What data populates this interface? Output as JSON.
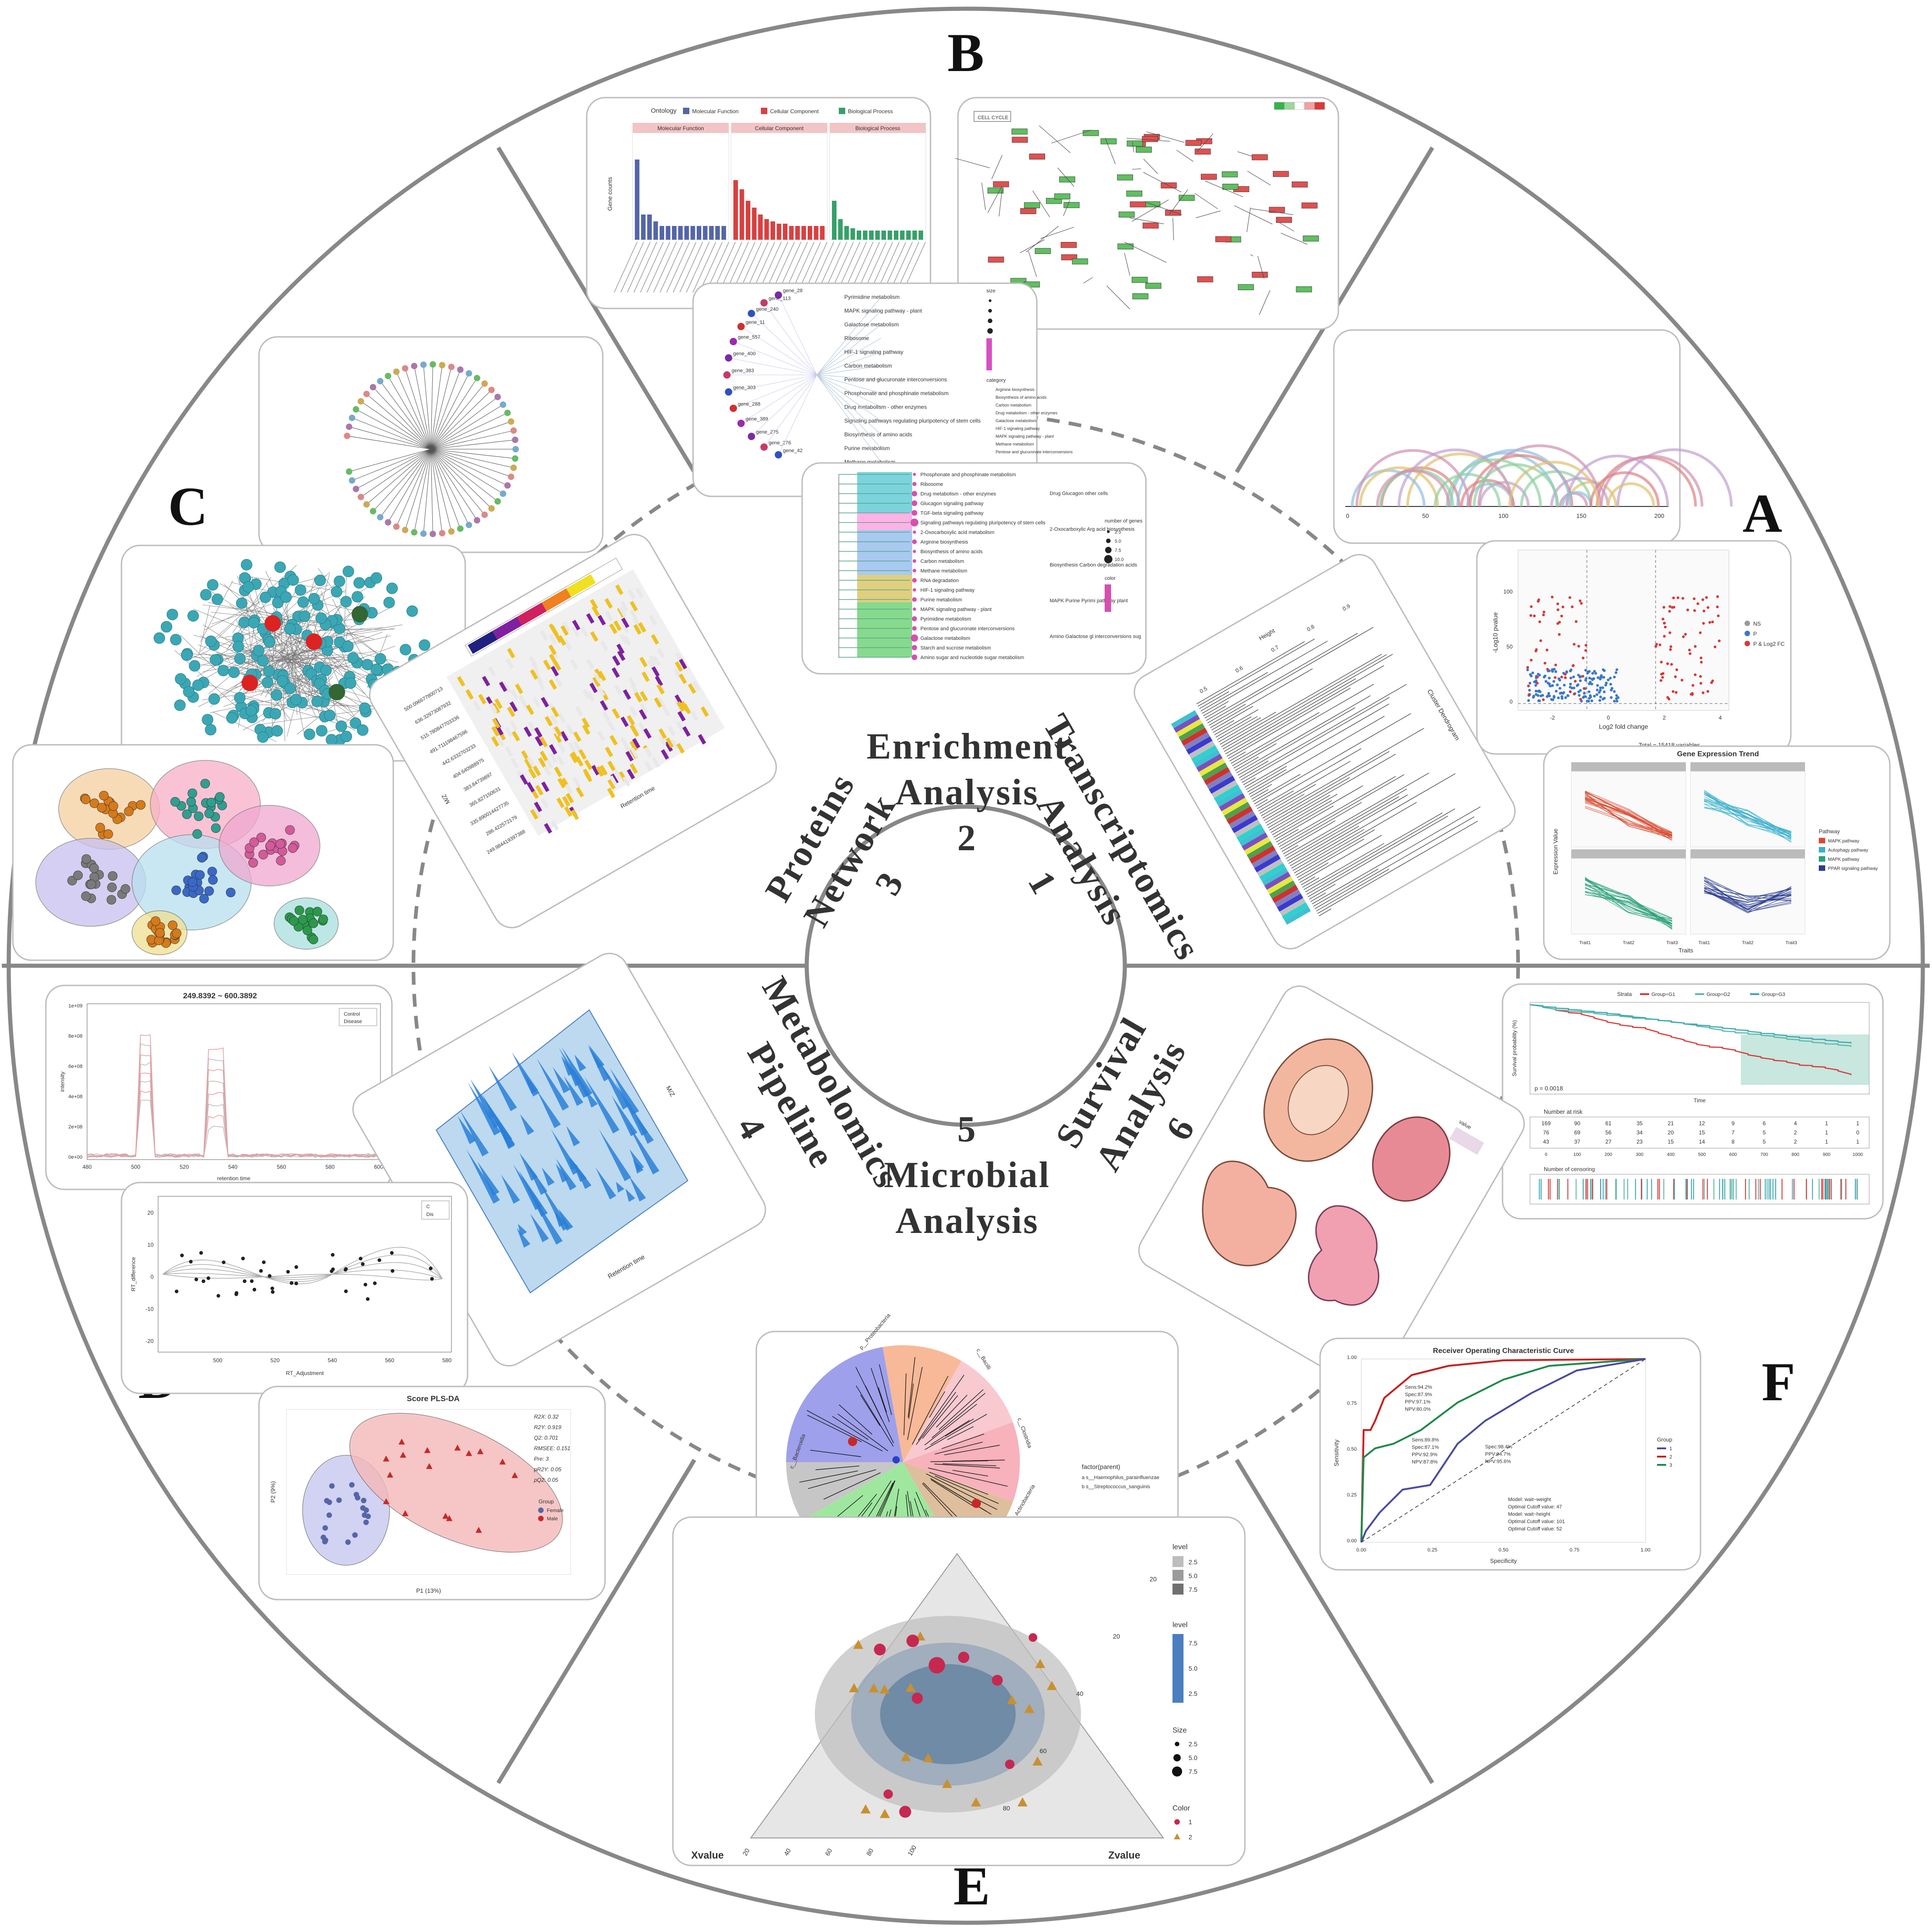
{
  "panel_letters": {
    "A": "A",
    "B": "B",
    "C": "C",
    "D": "D",
    "E": "E",
    "F": "F"
  },
  "sections": [
    {
      "key": "transcriptomics",
      "lines": [
        "Transcriptomics",
        "Analysis",
        "1"
      ]
    },
    {
      "key": "enrichment",
      "lines": [
        "Enrichment",
        "Analysis",
        "2"
      ]
    },
    {
      "key": "proteins",
      "lines": [
        "Proteins",
        "Network",
        "3"
      ]
    },
    {
      "key": "metabolomics",
      "lines": [
        "Metabolomics",
        "Pipeline",
        "4"
      ]
    },
    {
      "key": "microbial",
      "lines": [
        "5",
        "Microbial",
        "Analysis"
      ]
    },
    {
      "key": "survival",
      "lines": [
        "Survival",
        "Analysis",
        "6"
      ]
    }
  ],
  "figures": {
    "go_bar": {
      "legend_title": "Ontology",
      "legend": [
        "Molecular Function",
        "Cellular Component",
        "Biological Process"
      ],
      "ylabel": "Gene counts",
      "facets": [
        "Molecular Function",
        "Cellular Component",
        "Biological Process"
      ]
    },
    "kegg_map": {
      "title": "CELL CYCLE"
    },
    "cnet": {
      "genes": [
        "gene_28",
        "gene_113",
        "gene_240",
        "gene_11",
        "gene_557",
        "gene_400",
        "gene_383",
        "gene_303",
        "gene_288",
        "gene_389",
        "gene_275",
        "gene_276",
        "gene_42"
      ],
      "terms": [
        "Pyrimidine metabolism",
        "MAPK signaling pathway - plant",
        "Galactose metabolism",
        "Ribosome",
        "HIF-1 signaling pathway",
        "Carbon metabolism",
        "Pentose and glucuronate interconversions",
        "Phosphonate and phosphinate metabolism",
        "Drug metabolism - other enzymes",
        "Signaling pathways regulating pluripotency of stem cells",
        "Biosynthesis of amino acids",
        "Purine metabolism",
        "Methane metabolism"
      ],
      "legend": [
        "Arginine biosynthesis",
        "Biosynthesis of amino acids",
        "Carbon metabolism",
        "Drug metabolism - other enzymes",
        "Galactose metabolism",
        "HIF-1 signaling pathway",
        "MAPK signaling pathway - plant",
        "Methane metabolism",
        "Pentose and glucuronate interconversions"
      ],
      "legend_title": "category",
      "size_title": "size"
    },
    "tree": {
      "terms": [
        "Phosphonate and phosphinate metabolism",
        "Ribosome",
        "Drug metabolism - other enzymes",
        "Glucagon signaling pathway",
        "TGF-beta signaling pathway",
        "Signaling pathways regulating pluripotency of stem cells",
        "2-Oxocarboxylic acid metabolism",
        "Arginine biosynthesis",
        "Biosynthesis of amino acids",
        "Carbon metabolism",
        "Methane metabolism",
        "RNA degradation",
        "HIF-1 signaling pathway",
        "Purine metabolism",
        "MAPK signaling pathway - plant",
        "Pyrimidine metabolism",
        "Pentose and glucuronate interconversions",
        "Galactose metabolism",
        "Starch and sucrose metabolism",
        "Amino sugar and nucleotide sugar metabolism"
      ],
      "clusters": [
        "Drug Glucagon other cells",
        "2-Oxocarboxylic Arg acid biosynthesis",
        "Biosynthesis Carbon degradation acids",
        "MAPK Purine Pyrimi pathway plant",
        "Amino Galactose gl interconversions sug"
      ],
      "size_title": "number of genes",
      "size_vals": [
        "2.5",
        "5.0",
        "7.5",
        "10.0"
      ],
      "color_title": "color"
    },
    "arc": {
      "ticks": [
        "0",
        "50",
        "100",
        "150",
        "200"
      ]
    },
    "volcano": {
      "xlabel": "Log2 fold change",
      "ylabel": "-Log10 pvalue",
      "footer": "Total = 15418 variables",
      "legend": [
        "NS",
        "P",
        "P & Log2 FC"
      ],
      "yticks": [
        "0",
        "50",
        "100"
      ],
      "xticks": [
        "-2",
        "0",
        "2",
        "4"
      ]
    },
    "dendro": {
      "ylabel": "Height",
      "title": "Cluster Dendrogram",
      "ticks": [
        "0.5",
        "0.6",
        "0.7",
        "0.8",
        "0.9"
      ]
    },
    "trend": {
      "title": "Gene Expression Trend",
      "ylabel": "Expression Value",
      "xlabel": "Traits",
      "legend_title": "Pathway",
      "legend": [
        "MAPK pathway",
        "Autophagy pathway",
        "MAPK pathway",
        "PPAR signaling pathway"
      ],
      "xticks": [
        "Trait1",
        "Trait2",
        "Trait3"
      ]
    },
    "heatmap": {
      "xlabel": "Retention time",
      "ylabel": "M/Z",
      "mz": [
        "500.096677800713",
        "636.32973087932",
        "515.780847703336",
        "491.711198467596",
        "442.6332703233",
        "404.640988975",
        "383.84739897",
        "365.827150631",
        "335.890014427735",
        "286.422572179",
        "249.984419397388"
      ]
    },
    "network": {},
    "clusters": {},
    "chrom": {
      "title": "249.8392 ~ 600.3892",
      "xlabel": "retention time",
      "ylabel": "intensity",
      "legend": [
        "Control",
        "Disease"
      ],
      "xticks": [
        "480",
        "500",
        "520",
        "540",
        "560",
        "580",
        "600"
      ],
      "yticks": [
        "0e+00",
        "2e+08",
        "4e+08",
        "6e+08",
        "8e+08",
        "1e+09"
      ]
    },
    "surface": {
      "xlabel": "Retention time",
      "ylabel": "M/Z"
    },
    "rt": {
      "xlabel": "RT_Adjustment",
      "ylabel": "RT_difference",
      "xticks": [
        "500",
        "520",
        "540",
        "560",
        "580"
      ],
      "yticks": [
        "-20",
        "-10",
        "0",
        "10",
        "20"
      ],
      "legend": [
        "C",
        "Dis"
      ]
    },
    "plsda": {
      "title": "Score PLS-DA",
      "xlabel": "P1 (13%)",
      "ylabel": "P2 (9%)",
      "stats": [
        "R2X: 0.32",
        "R2Y: 0.919",
        "Q2: 0.701",
        "RMSEE: 0.151",
        "Pre: 3",
        "pR2Y: 0.05",
        "pQ2: 0.05"
      ],
      "legend_title": "Group",
      "legend": [
        "Female",
        "Male"
      ]
    },
    "phylo": {
      "legend_title": "factor(parent)",
      "legend": [
        "s__Haemophilus_parainfluenzae",
        "s__Streptococcus_sanguinis"
      ],
      "labels": [
        "c__Bacteroidia",
        "p__Proteobacteria",
        "c__Bacilli",
        "c__Clostridia",
        "p__Actinobacteria"
      ]
    },
    "ternary": {
      "xlabel": "Xvalue",
      "zlabel": "Zvalue",
      "ticks": [
        "20",
        "40",
        "60",
        "80",
        "100"
      ],
      "legend1_title": "level",
      "legend1": [
        "2.5",
        "5.0",
        "7.5"
      ],
      "legend2_title": "level",
      "legend2": [
        "7.5",
        "5.0",
        "2.5"
      ],
      "size_title": "Size",
      "sizes": [
        "2.5",
        "5.0",
        "7.5"
      ],
      "color_title": "Color",
      "colors": [
        "1",
        "2"
      ]
    },
    "km": {
      "strata_label": "Strata",
      "strata": [
        "Group=G1",
        "Group=G2",
        "Group=G3"
      ],
      "ylabel": "Survival probability (%)",
      "pval": "p = 0.0018",
      "xlabel": "Time",
      "risk_title": "Number at risk",
      "risk": [
        [
          "169",
          "90",
          "61",
          "35",
          "21",
          "12",
          "9",
          "6",
          "4",
          "1",
          "1"
        ],
        [
          "76",
          "69",
          "56",
          "34",
          "20",
          "15",
          "7",
          "5",
          "2",
          "1",
          "0"
        ],
        [
          "43",
          "37",
          "27",
          "23",
          "15",
          "14",
          "8",
          "5",
          "2",
          "1",
          "1"
        ]
      ],
      "cens_title": "Number of censoring",
      "xticks": [
        "0",
        "100",
        "200",
        "300",
        "400",
        "500",
        "600",
        "700",
        "800",
        "900",
        "1000"
      ]
    },
    "anatomy": {
      "legend_title": "value"
    },
    "roc": {
      "title": "Receiver Operating Characteristic Curve",
      "xlabel": "Specificity",
      "ylabel": "Sensitivity",
      "legend_title": "Group",
      "legend": [
        "1",
        "2",
        "3"
      ],
      "xticks": [
        "0.00",
        "0.25",
        "0.50",
        "0.75",
        "1.00"
      ],
      "yticks": [
        "0.00",
        "0.25",
        "0.50",
        "0.75",
        "1.00"
      ],
      "notes": [
        "Sens:94.2%",
        "Spec:87.9%",
        "PPV:97.1%",
        "NPV:80.0%",
        "Spec:98.4%",
        "PPV:94.7%",
        "NPV:95.6%",
        "Sens:89.8%",
        "Spec:87.1%",
        "PPV:92.9%",
        "NPV:87.8%",
        "Model: wait~weight",
        "Optimal Cutoff value: 47",
        "Model: wait~height",
        "Optimal Cutoff value: 101",
        "Optimal Cutoff value: 52"
      ]
    }
  },
  "colors": {
    "ring": "#888888",
    "dashed": "#888888",
    "teal": "#3ba7b5",
    "red": "#d83a3a",
    "navy": "#2a3f8f",
    "green": "#2e9d5e"
  }
}
